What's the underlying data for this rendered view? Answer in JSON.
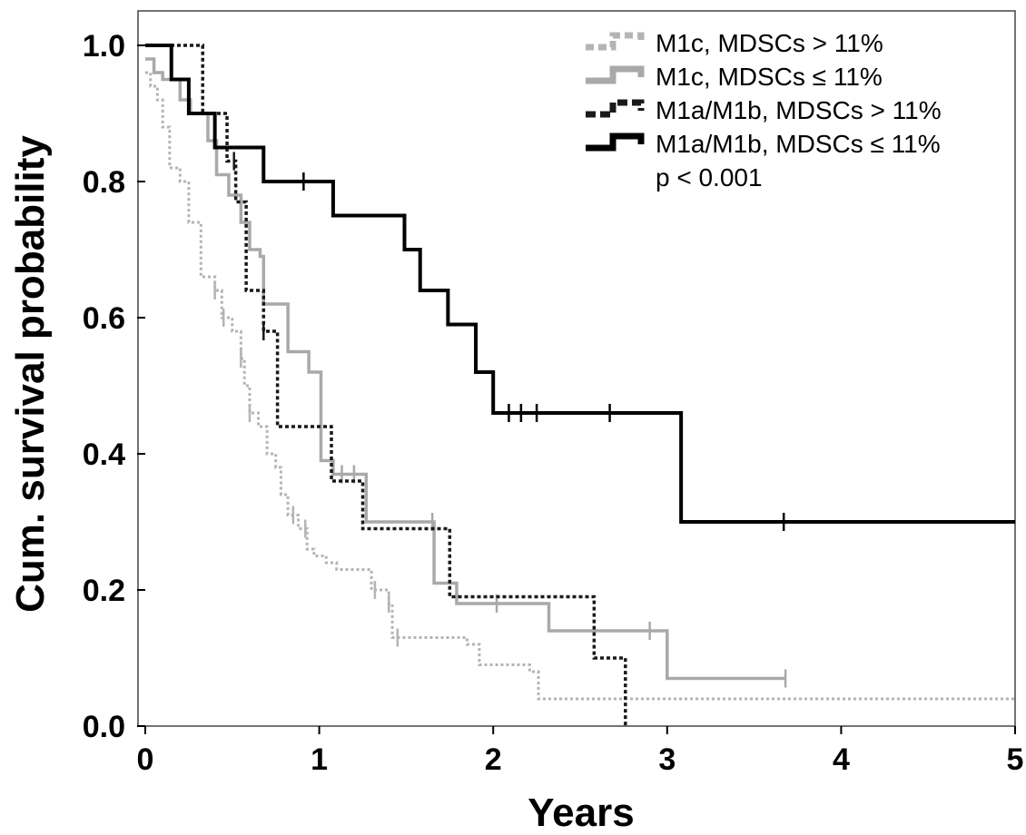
{
  "chart_data": {
    "type": "line",
    "xlabel": "Years",
    "ylabel": "Cum. survival probability",
    "xlim": [
      0,
      5
    ],
    "ylim": [
      0,
      1.0
    ],
    "x_ticks": [
      "0",
      "1",
      "2",
      "3",
      "4",
      "5"
    ],
    "y_ticks": [
      "0.0",
      "0.2",
      "0.4",
      "0.6",
      "0.8",
      "1.0"
    ],
    "grid": false,
    "legend_position": "top-right",
    "annotation": "p < 0.001",
    "series": [
      {
        "name": "M1c, MDSCs > 11%",
        "color": "#b4b4b4",
        "style": "dotted",
        "steps": [
          [
            0,
            0.96
          ],
          [
            0.03,
            0.94
          ],
          [
            0.07,
            0.92
          ],
          [
            0.1,
            0.88
          ],
          [
            0.14,
            0.82
          ],
          [
            0.2,
            0.8
          ],
          [
            0.25,
            0.74
          ],
          [
            0.32,
            0.66
          ],
          [
            0.4,
            0.64
          ],
          [
            0.44,
            0.6
          ],
          [
            0.5,
            0.58
          ],
          [
            0.55,
            0.54
          ],
          [
            0.57,
            0.5
          ],
          [
            0.6,
            0.46
          ],
          [
            0.65,
            0.44
          ],
          [
            0.7,
            0.4
          ],
          [
            0.75,
            0.38
          ],
          [
            0.78,
            0.34
          ],
          [
            0.82,
            0.31
          ],
          [
            0.88,
            0.29
          ],
          [
            0.93,
            0.26
          ],
          [
            0.97,
            0.25
          ],
          [
            1.04,
            0.24
          ],
          [
            1.1,
            0.23
          ],
          [
            1.3,
            0.2
          ],
          [
            1.4,
            0.18
          ],
          [
            1.42,
            0.13
          ],
          [
            1.85,
            0.12
          ],
          [
            1.92,
            0.09
          ],
          [
            2.21,
            0.08
          ],
          [
            2.26,
            0.04
          ],
          [
            5.0,
            0.04
          ]
        ],
        "censor_x": [
          0.4,
          0.45,
          0.55,
          0.6,
          0.85,
          0.92,
          1.32,
          1.4,
          1.45
        ]
      },
      {
        "name": "M1c, MDSCs ≤ 11%",
        "color": "#a9a9a9",
        "style": "solid",
        "steps": [
          [
            0,
            0.98
          ],
          [
            0.05,
            0.96
          ],
          [
            0.1,
            0.95
          ],
          [
            0.2,
            0.92
          ],
          [
            0.26,
            0.9
          ],
          [
            0.36,
            0.86
          ],
          [
            0.41,
            0.81
          ],
          [
            0.48,
            0.78
          ],
          [
            0.55,
            0.74
          ],
          [
            0.6,
            0.7
          ],
          [
            0.66,
            0.69
          ],
          [
            0.68,
            0.62
          ],
          [
            0.82,
            0.55
          ],
          [
            0.94,
            0.52
          ],
          [
            1.01,
            0.39
          ],
          [
            1.08,
            0.37
          ],
          [
            1.27,
            0.3
          ],
          [
            1.66,
            0.21
          ],
          [
            1.79,
            0.18
          ],
          [
            2.32,
            0.14
          ],
          [
            3.0,
            0.07
          ],
          [
            3.68,
            0.07
          ]
        ],
        "censor_x": [
          1.13,
          1.2,
          1.65,
          2.02,
          2.9,
          3.68
        ]
      },
      {
        "name": "M1a/M1b, MDSCs > 11%",
        "color": "#1a1a1a",
        "style": "dashed",
        "steps": [
          [
            0,
            1.0
          ],
          [
            0.33,
            0.9
          ],
          [
            0.47,
            0.83
          ],
          [
            0.52,
            0.77
          ],
          [
            0.58,
            0.64
          ],
          [
            0.68,
            0.58
          ],
          [
            0.76,
            0.44
          ],
          [
            1.07,
            0.36
          ],
          [
            1.25,
            0.29
          ],
          [
            1.75,
            0.19
          ],
          [
            2.58,
            0.1
          ],
          [
            2.76,
            0.0
          ]
        ],
        "censor_x": [
          0.51,
          0.68
        ]
      },
      {
        "name": "M1a/M1b, MDSCs ≤ 11%",
        "color": "#000000",
        "style": "solid",
        "steps": [
          [
            0,
            1.0
          ],
          [
            0.15,
            0.95
          ],
          [
            0.25,
            0.9
          ],
          [
            0.4,
            0.85
          ],
          [
            0.68,
            0.8
          ],
          [
            1.08,
            0.75
          ],
          [
            1.49,
            0.7
          ],
          [
            1.58,
            0.64
          ],
          [
            1.74,
            0.59
          ],
          [
            1.9,
            0.52
          ],
          [
            2.0,
            0.46
          ],
          [
            3.08,
            0.3
          ],
          [
            5.0,
            0.3
          ]
        ],
        "censor_x": [
          0.91,
          2.09,
          2.16,
          2.25,
          2.67,
          3.67
        ]
      }
    ]
  }
}
